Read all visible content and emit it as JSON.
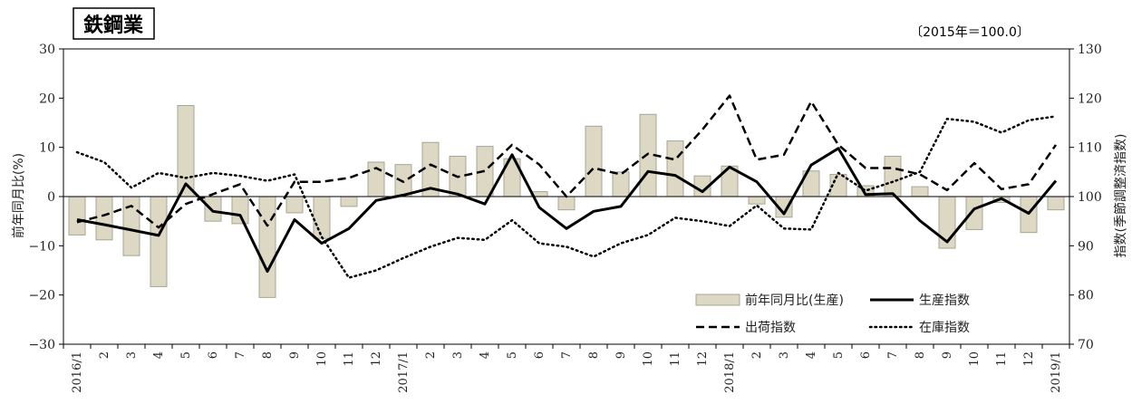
{
  "chart_data": {
    "type": "bar+line",
    "title": "鉄鋼業",
    "base_note": "〔2015年＝100.0〕",
    "ylabel_left": "前年同月比(%)",
    "ylabel_right": "指数(季節調整済指数)",
    "ylim_left": [
      -30,
      30
    ],
    "yticks_left": [
      "30",
      "20",
      "10",
      "0",
      "−10",
      "−20",
      "−30"
    ],
    "ylim_right": [
      70,
      130
    ],
    "yticks_right": [
      "130",
      "120",
      "110",
      "100",
      "90",
      "80",
      "70"
    ],
    "categories": [
      "2016/1",
      "2",
      "3",
      "4",
      "5",
      "6",
      "7",
      "8",
      "9",
      "10",
      "11",
      "12",
      "2017/1",
      "2",
      "3",
      "4",
      "5",
      "6",
      "7",
      "8",
      "9",
      "10",
      "11",
      "12",
      "2018/1",
      "2",
      "3",
      "4",
      "5",
      "6",
      "7",
      "8",
      "9",
      "10",
      "11",
      "12",
      "2019/1"
    ],
    "bar_series": {
      "name": "前年同月比(生産)",
      "color": "#ddd8c3",
      "values": [
        -7.8,
        -8.8,
        -12,
        -18.3,
        18.5,
        -5,
        -5.5,
        -20.5,
        -3.3,
        -8.5,
        -2,
        7,
        6.5,
        11,
        8.2,
        10.2,
        7.7,
        1,
        -2.7,
        14.3,
        5,
        16.7,
        11.3,
        4.2,
        6.2,
        -1.5,
        -4.2,
        5.2,
        4.5,
        2.2,
        8.2,
        2,
        -10.5,
        -6.7,
        -1.2,
        -7.3,
        -2.7
      ]
    },
    "line_series": [
      {
        "name": "生産指数",
        "style": "solid",
        "values": [
          95.3,
          94.3,
          93.2,
          92.1,
          102.6,
          97,
          96.2,
          84.8,
          95.3,
          90.5,
          93.5,
          99.2,
          100.3,
          101.7,
          100.5,
          98.5,
          108.5,
          97.8,
          93.5,
          97,
          98,
          105.1,
          104.3,
          101,
          106,
          103,
          96.5,
          106.4,
          109.8,
          100.4,
          100.6,
          95.1,
          90.8,
          97.5,
          99.6,
          96.6,
          103.2
        ]
      },
      {
        "name": "出荷指数",
        "style": "dashed",
        "values": [
          94.8,
          96.2,
          98.1,
          93.7,
          98.5,
          100.5,
          102.5,
          94.1,
          103,
          103,
          103.8,
          105.8,
          103,
          106.5,
          104,
          105.2,
          110.5,
          106.5,
          100,
          105.8,
          104.5,
          108.7,
          107.5,
          113.6,
          120.5,
          107.5,
          108.5,
          119.3,
          110.5,
          105.8,
          105.8,
          104.5,
          101.3,
          106.8,
          101.5,
          102.5,
          110.5
        ]
      },
      {
        "name": "在庫指数",
        "style": "dotted",
        "values": [
          109,
          107,
          101.8,
          104.8,
          103.8,
          104.8,
          104.2,
          103.2,
          104.5,
          91.8,
          83.5,
          85,
          87.5,
          89.8,
          91.6,
          91.2,
          95.2,
          90.5,
          89.8,
          87.8,
          90.5,
          92.2,
          95.7,
          95,
          94,
          98.2,
          93.5,
          93.3,
          104.8,
          101.2,
          103,
          105,
          115.8,
          115.2,
          113,
          115.5,
          116.3
        ]
      }
    ],
    "legend": [
      {
        "label": "前年同月比(生産)",
        "kind": "bar"
      },
      {
        "label": "生産指数",
        "kind": "solid"
      },
      {
        "label": "出荷指数",
        "kind": "dashed"
      },
      {
        "label": "在庫指数",
        "kind": "dotted"
      }
    ],
    "legend_position": "bottom-right",
    "grid": false
  }
}
